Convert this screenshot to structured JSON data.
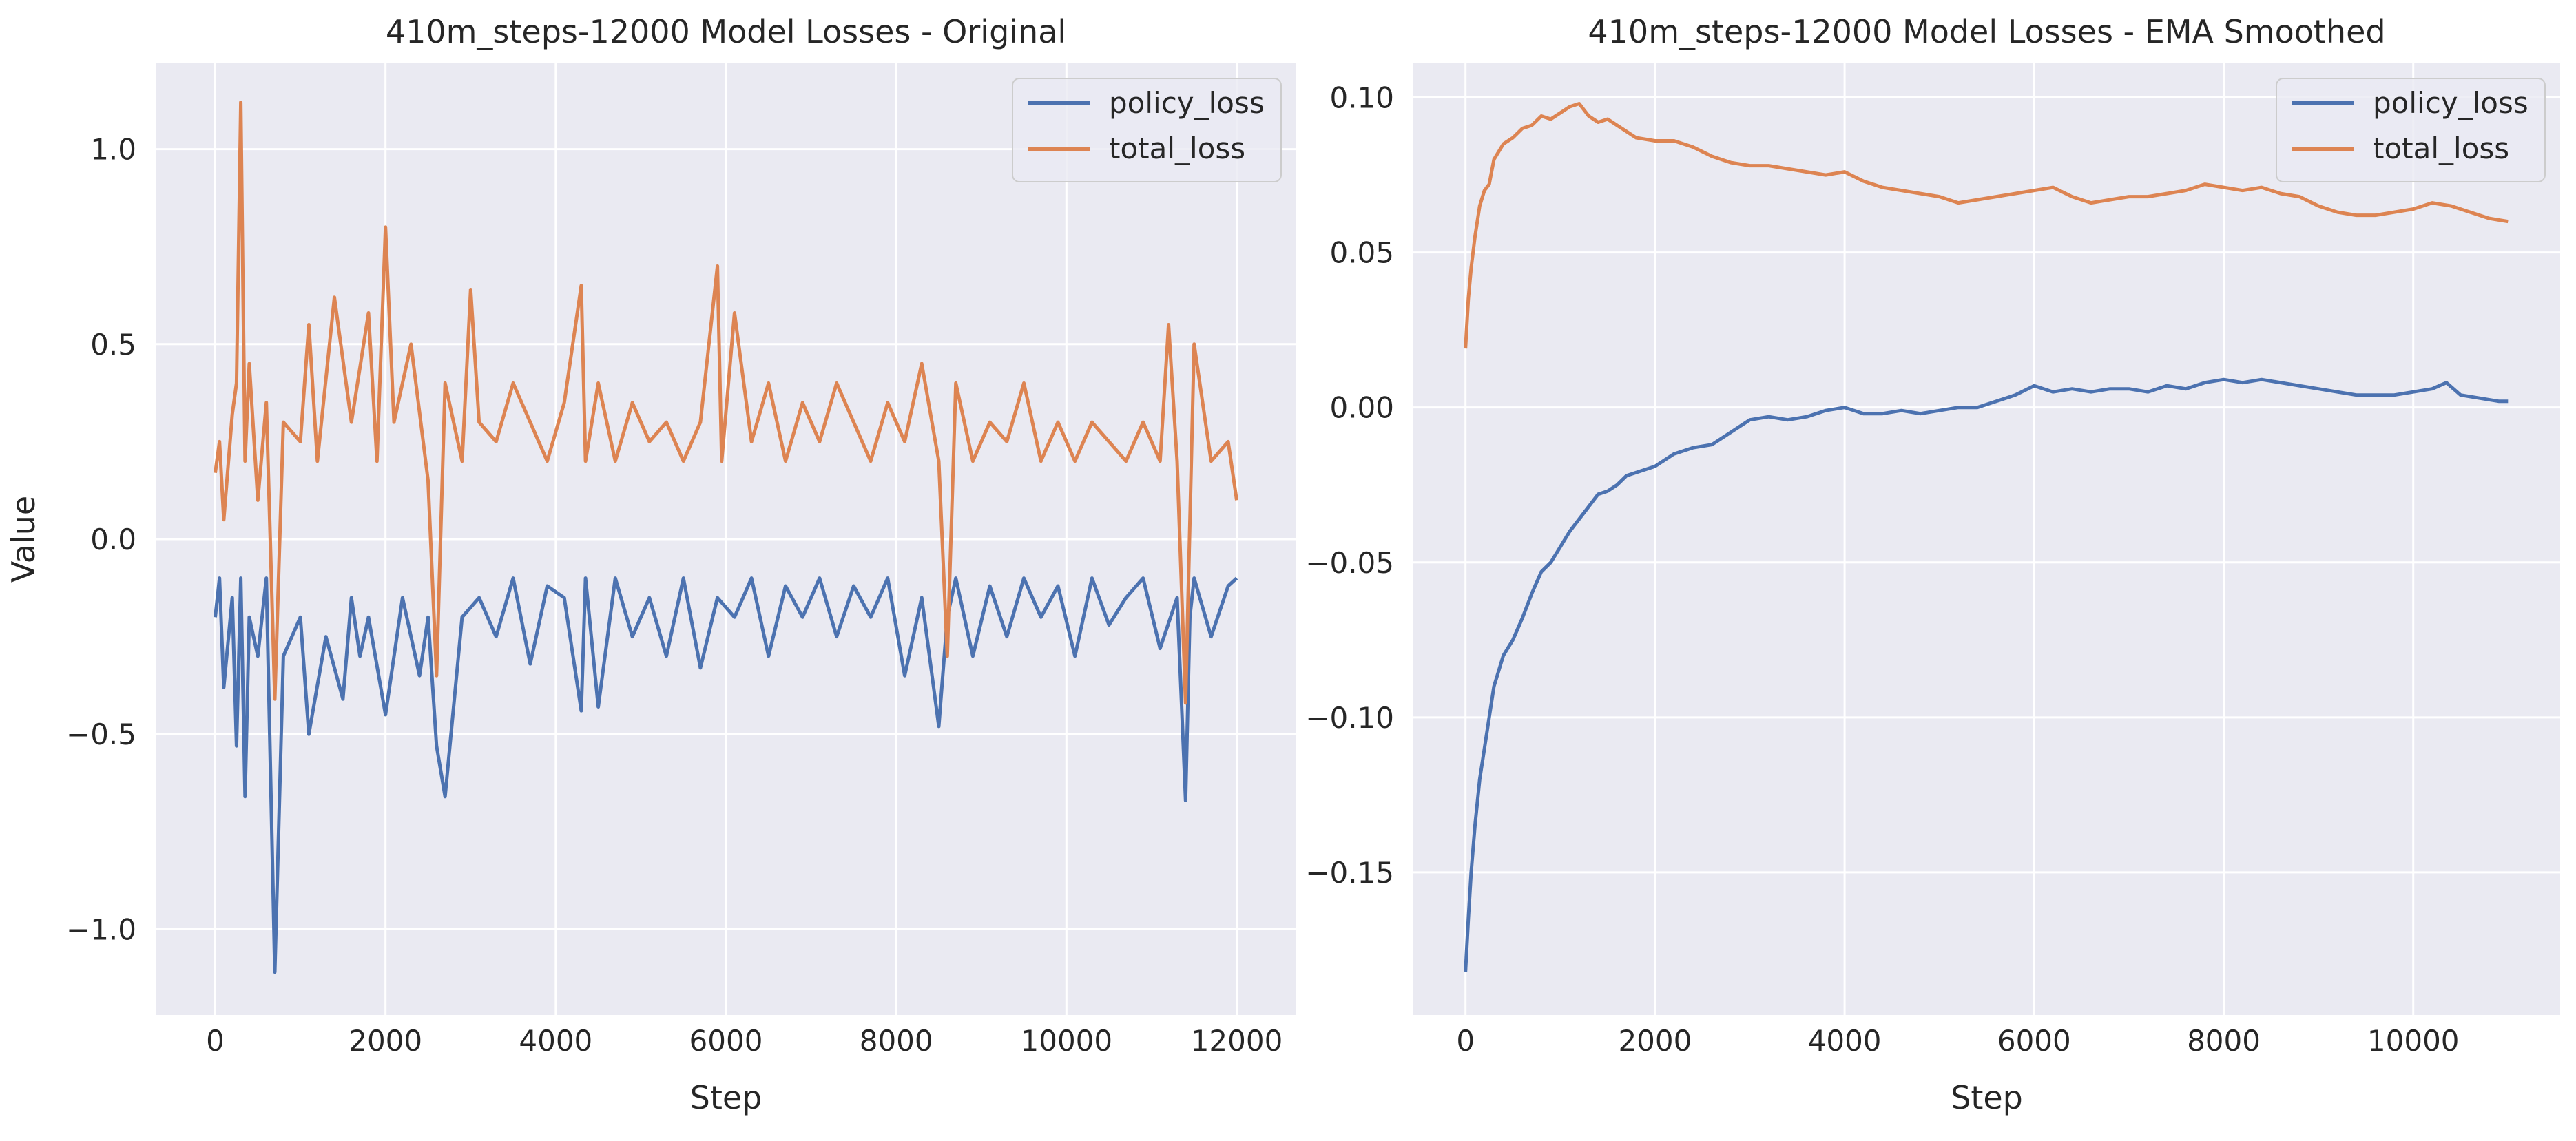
{
  "charts": [
    {
      "title": "410m_steps-12000 Model Losses - Original",
      "xlabel": "Step",
      "ylabel": "Value",
      "xticks": [
        0,
        2000,
        4000,
        6000,
        8000,
        10000,
        12000
      ],
      "yticks": [
        -1.0,
        -0.5,
        0.0,
        0.5,
        1.0
      ],
      "ytick_labels": [
        "−1.0",
        "−0.5",
        "0.0",
        "0.5",
        "1.0"
      ],
      "xtick_labels": [
        "0",
        "2000",
        "4000",
        "6000",
        "8000",
        "10000",
        "12000"
      ],
      "legend": [
        "policy_loss",
        "total_loss"
      ]
    },
    {
      "title": "410m_steps-12000 Model Losses - EMA Smoothed",
      "xlabel": "Step",
      "ylabel": "",
      "xticks": [
        0,
        2000,
        4000,
        6000,
        8000,
        10000
      ],
      "yticks": [
        -0.15,
        -0.1,
        -0.05,
        0.0,
        0.05,
        0.1
      ],
      "ytick_labels": [
        "−0.15",
        "−0.10",
        "−0.05",
        "0.00",
        "0.05",
        "0.10"
      ],
      "xtick_labels": [
        "0",
        "2000",
        "4000",
        "6000",
        "8000",
        "10000"
      ],
      "legend": [
        "policy_loss",
        "total_loss"
      ]
    }
  ],
  "colors": {
    "policy_loss": "#4c72b0",
    "total_loss": "#dd8452",
    "plot_bg": "#eaeaf2",
    "grid": "#ffffff"
  },
  "chart_data": [
    {
      "type": "line",
      "title": "410m_steps-12000 Model Losses - Original",
      "xlabel": "Step",
      "ylabel": "Value",
      "xlim": [
        -700,
        12700
      ],
      "ylim": [
        -1.22,
        1.22
      ],
      "grid": true,
      "legend_position": "top-right",
      "series": [
        {
          "name": "policy_loss",
          "x": [
            0,
            50,
            100,
            200,
            250,
            300,
            350,
            400,
            500,
            600,
            700,
            800,
            1000,
            1100,
            1300,
            1500,
            1600,
            1700,
            1800,
            2000,
            2200,
            2400,
            2500,
            2600,
            2700,
            2900,
            3100,
            3300,
            3500,
            3700,
            3900,
            4100,
            4300,
            4350,
            4500,
            4700,
            4900,
            5100,
            5300,
            5500,
            5700,
            5900,
            6100,
            6300,
            6500,
            6700,
            6900,
            7100,
            7300,
            7500,
            7700,
            7900,
            8100,
            8300,
            8500,
            8600,
            8700,
            8900,
            9100,
            9300,
            9500,
            9700,
            9900,
            10100,
            10300,
            10500,
            10700,
            10900,
            11100,
            11300,
            11400,
            11450,
            11500,
            11700,
            11900,
            12000
          ],
          "y": [
            -0.2,
            -0.1,
            -0.38,
            -0.15,
            -0.53,
            -0.1,
            -0.66,
            -0.2,
            -0.3,
            -0.1,
            -1.11,
            -0.3,
            -0.2,
            -0.5,
            -0.25,
            -0.41,
            -0.15,
            -0.3,
            -0.2,
            -0.45,
            -0.15,
            -0.35,
            -0.2,
            -0.53,
            -0.66,
            -0.2,
            -0.15,
            -0.25,
            -0.1,
            -0.32,
            -0.12,
            -0.15,
            -0.44,
            -0.1,
            -0.43,
            -0.1,
            -0.25,
            -0.15,
            -0.3,
            -0.1,
            -0.33,
            -0.15,
            -0.2,
            -0.1,
            -0.3,
            -0.12,
            -0.2,
            -0.1,
            -0.25,
            -0.12,
            -0.2,
            -0.1,
            -0.35,
            -0.15,
            -0.48,
            -0.2,
            -0.1,
            -0.3,
            -0.12,
            -0.25,
            -0.1,
            -0.2,
            -0.12,
            -0.3,
            -0.1,
            -0.22,
            -0.15,
            -0.1,
            -0.28,
            -0.15,
            -0.67,
            -0.2,
            -0.1,
            -0.25,
            -0.12,
            -0.1
          ]
        },
        {
          "name": "total_loss",
          "x": [
            0,
            50,
            100,
            200,
            250,
            300,
            350,
            400,
            500,
            600,
            700,
            800,
            1000,
            1100,
            1200,
            1400,
            1600,
            1800,
            1900,
            2000,
            2100,
            2300,
            2500,
            2600,
            2700,
            2900,
            3000,
            3100,
            3300,
            3500,
            3700,
            3900,
            4100,
            4300,
            4350,
            4500,
            4700,
            4900,
            5100,
            5300,
            5500,
            5700,
            5900,
            5950,
            6100,
            6300,
            6500,
            6700,
            6900,
            7100,
            7300,
            7500,
            7700,
            7900,
            8100,
            8300,
            8500,
            8600,
            8700,
            8900,
            9100,
            9300,
            9500,
            9700,
            9900,
            10100,
            10300,
            10500,
            10700,
            10900,
            11100,
            11200,
            11300,
            11400,
            11500,
            11700,
            11900,
            12000
          ],
          "y": [
            0.17,
            0.25,
            0.05,
            0.32,
            0.4,
            1.12,
            0.2,
            0.45,
            0.1,
            0.35,
            -0.41,
            0.3,
            0.25,
            0.55,
            0.2,
            0.62,
            0.3,
            0.58,
            0.2,
            0.8,
            0.3,
            0.5,
            0.15,
            -0.35,
            0.4,
            0.2,
            0.64,
            0.3,
            0.25,
            0.4,
            0.3,
            0.2,
            0.35,
            0.65,
            0.2,
            0.4,
            0.2,
            0.35,
            0.25,
            0.3,
            0.2,
            0.3,
            0.7,
            0.2,
            0.58,
            0.25,
            0.4,
            0.2,
            0.35,
            0.25,
            0.4,
            0.3,
            0.2,
            0.35,
            0.25,
            0.45,
            0.2,
            -0.3,
            0.4,
            0.2,
            0.3,
            0.25,
            0.4,
            0.2,
            0.3,
            0.2,
            0.3,
            0.25,
            0.2,
            0.3,
            0.2,
            0.55,
            0.2,
            -0.42,
            0.5,
            0.2,
            0.25,
            0.1
          ]
        }
      ]
    },
    {
      "type": "line",
      "title": "410m_steps-12000 Model Losses - EMA Smoothed",
      "xlabel": "Step",
      "ylabel": "",
      "xlim": [
        -550,
        11550
      ],
      "ylim": [
        -0.196,
        0.111
      ],
      "grid": true,
      "legend_position": "top-right",
      "series": [
        {
          "name": "policy_loss",
          "x": [
            0,
            30,
            60,
            100,
            150,
            200,
            250,
            300,
            400,
            500,
            600,
            700,
            800,
            900,
            1000,
            1100,
            1200,
            1300,
            1400,
            1500,
            1600,
            1700,
            1800,
            2000,
            2200,
            2400,
            2600,
            2800,
            3000,
            3200,
            3400,
            3600,
            3800,
            4000,
            4200,
            4400,
            4600,
            4800,
            5000,
            5200,
            5400,
            5600,
            5800,
            6000,
            6200,
            6400,
            6600,
            6800,
            7000,
            7200,
            7400,
            7600,
            7800,
            8000,
            8200,
            8400,
            8600,
            8800,
            9000,
            9200,
            9400,
            9600,
            9800,
            10000,
            10200,
            10350,
            10500,
            10700,
            10900,
            11000
          ],
          "y": [
            -0.182,
            -0.165,
            -0.15,
            -0.135,
            -0.12,
            -0.11,
            -0.1,
            -0.09,
            -0.08,
            -0.075,
            -0.068,
            -0.06,
            -0.053,
            -0.05,
            -0.045,
            -0.04,
            -0.036,
            -0.032,
            -0.028,
            -0.027,
            -0.025,
            -0.022,
            -0.021,
            -0.019,
            -0.015,
            -0.013,
            -0.012,
            -0.008,
            -0.004,
            -0.003,
            -0.004,
            -0.003,
            -0.001,
            0.0,
            -0.002,
            -0.002,
            -0.001,
            -0.002,
            -0.001,
            0.0,
            0.0,
            0.002,
            0.004,
            0.007,
            0.005,
            0.006,
            0.005,
            0.006,
            0.006,
            0.005,
            0.007,
            0.006,
            0.008,
            0.009,
            0.008,
            0.009,
            0.008,
            0.007,
            0.006,
            0.005,
            0.004,
            0.004,
            0.004,
            0.005,
            0.006,
            0.008,
            0.004,
            0.003,
            0.002,
            0.002
          ]
        },
        {
          "name": "total_loss",
          "x": [
            0,
            30,
            60,
            100,
            150,
            200,
            250,
            300,
            400,
            500,
            600,
            700,
            800,
            900,
            1000,
            1100,
            1200,
            1300,
            1400,
            1500,
            1600,
            1700,
            1800,
            2000,
            2200,
            2400,
            2600,
            2800,
            3000,
            3200,
            3400,
            3600,
            3800,
            4000,
            4200,
            4400,
            4600,
            4800,
            5000,
            5200,
            5400,
            5600,
            5800,
            6000,
            6200,
            6400,
            6600,
            6800,
            7000,
            7200,
            7400,
            7600,
            7800,
            8000,
            8200,
            8400,
            8600,
            8800,
            9000,
            9200,
            9400,
            9600,
            9800,
            10000,
            10200,
            10400,
            10600,
            10800,
            11000
          ],
          "y": [
            0.019,
            0.035,
            0.045,
            0.055,
            0.065,
            0.07,
            0.072,
            0.08,
            0.085,
            0.087,
            0.09,
            0.091,
            0.094,
            0.093,
            0.095,
            0.097,
            0.098,
            0.094,
            0.092,
            0.093,
            0.091,
            0.089,
            0.087,
            0.086,
            0.086,
            0.084,
            0.081,
            0.079,
            0.078,
            0.078,
            0.077,
            0.076,
            0.075,
            0.076,
            0.073,
            0.071,
            0.07,
            0.069,
            0.068,
            0.066,
            0.067,
            0.068,
            0.069,
            0.07,
            0.071,
            0.068,
            0.066,
            0.067,
            0.068,
            0.068,
            0.069,
            0.07,
            0.072,
            0.071,
            0.07,
            0.071,
            0.069,
            0.068,
            0.065,
            0.063,
            0.062,
            0.062,
            0.063,
            0.064,
            0.066,
            0.065,
            0.063,
            0.061,
            0.06
          ]
        }
      ]
    }
  ]
}
